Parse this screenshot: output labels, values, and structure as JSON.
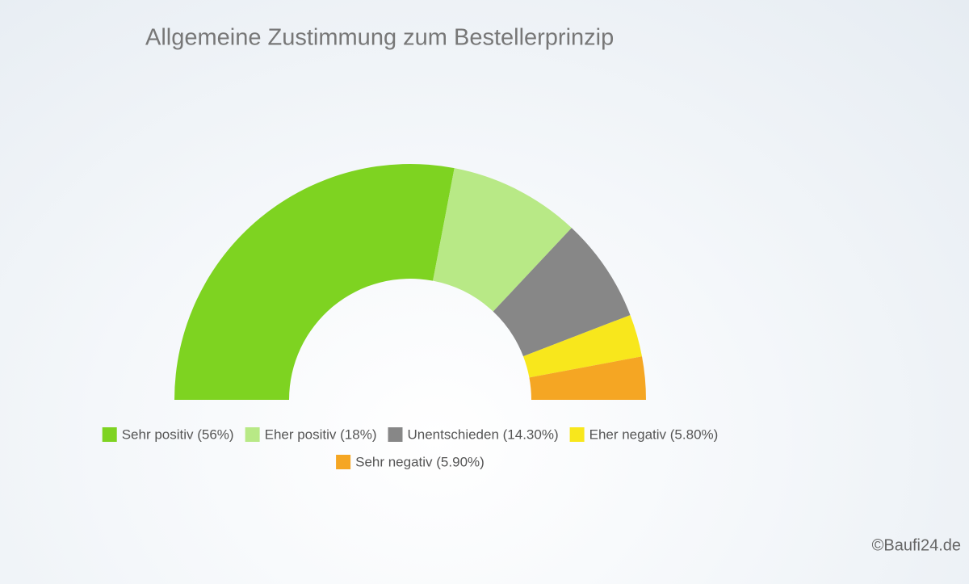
{
  "chart_data": {
    "type": "semidonut",
    "title": "Allgemeine Zustimmung zum Bestellerprinzip",
    "categories": [
      "Sehr positiv (56%)",
      "Eher positiv (18%)",
      "Unentschieden (14.30%)",
      "Eher negativ (5.80%)",
      "Sehr negativ (5.90%)"
    ],
    "values": [
      56,
      18,
      14.3,
      5.8,
      5.9
    ],
    "colors": [
      "#7ed321",
      "#b8e986",
      "#878787",
      "#f8e71c",
      "#f5a623"
    ],
    "credit": "©Baufi24.de"
  }
}
